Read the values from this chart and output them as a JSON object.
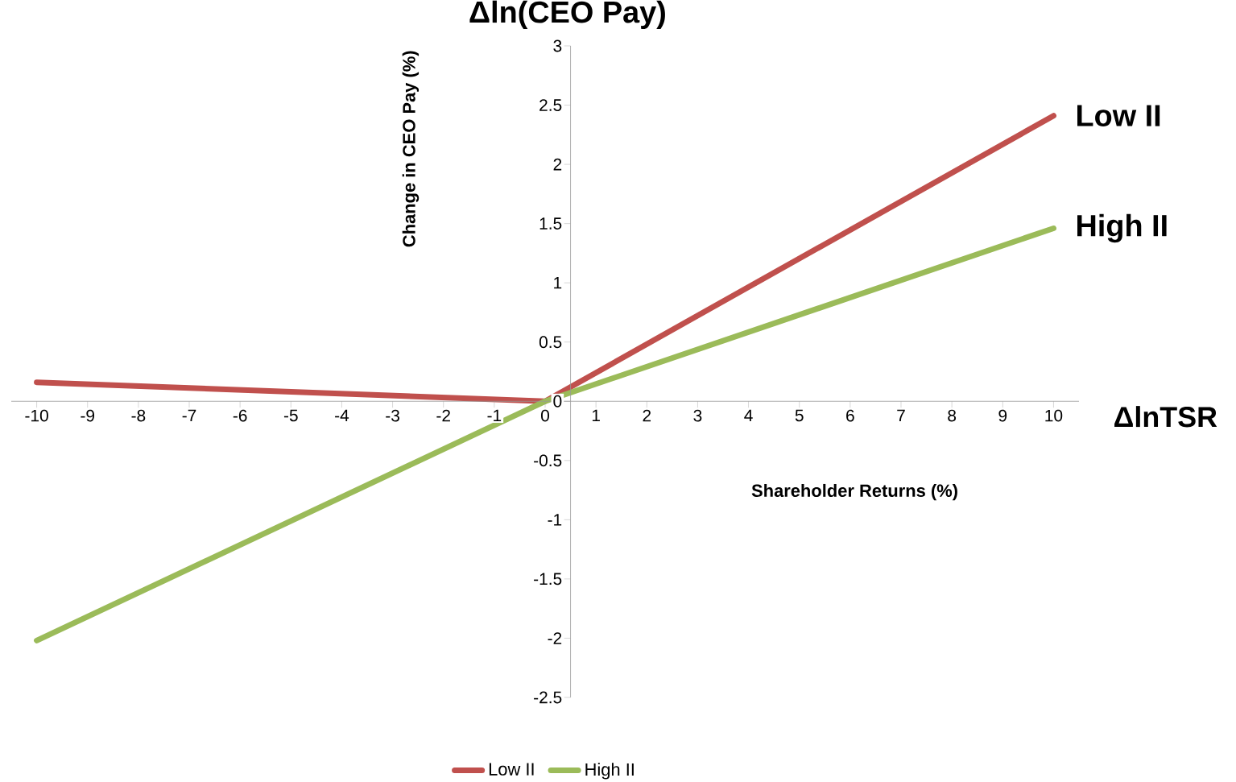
{
  "chart_data": {
    "type": "line",
    "title": "Δln(CEO Pay)",
    "xlabel": "Shareholder Returns (%)",
    "ylabel": "Change in CEO Pay (%)",
    "annotations": [
      "ΔlnTSR"
    ],
    "x": [
      -10,
      0,
      10
    ],
    "series": [
      {
        "name": "Low II",
        "color": "#c0504d",
        "values": [
          0.16,
          0,
          2.41
        ]
      },
      {
        "name": "High II",
        "color": "#9bbb59",
        "values": [
          -2.02,
          0,
          1.46
        ]
      }
    ],
    "xlim": [
      -10.5,
      10.5
    ],
    "ylim": [
      -2.5,
      3
    ],
    "xticks": [
      -10,
      -9,
      -8,
      -7,
      -6,
      -5,
      -4,
      -3,
      -2,
      -1,
      0,
      1,
      2,
      3,
      4,
      5,
      6,
      7,
      8,
      9,
      10
    ],
    "yticks": [
      -2.5,
      -2,
      -1.5,
      -1,
      -0.5,
      0,
      0.5,
      1,
      1.5,
      2,
      2.5,
      3
    ],
    "grid": false,
    "legend": "bottom",
    "marker": "none",
    "line_style": "solid"
  }
}
